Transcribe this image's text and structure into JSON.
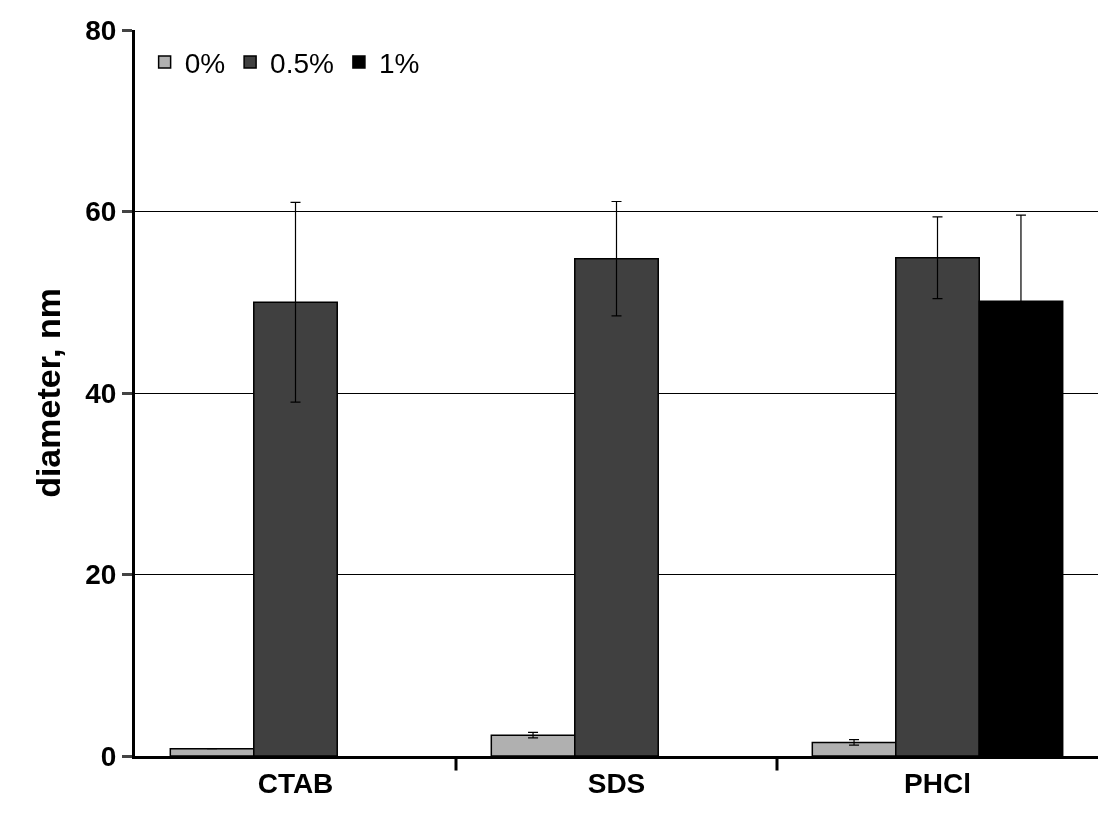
{
  "chart_data": {
    "type": "bar",
    "ylabel": "diameter, nm",
    "categories": [
      "CTAB",
      "SDS",
      "PHCl"
    ],
    "series": [
      {
        "name": "0%",
        "color": "#b0b0b0",
        "values": [
          0.8,
          2.3,
          1.5
        ],
        "errors": [
          null,
          0.3,
          0.3
        ]
      },
      {
        "name": "0.5%",
        "color": "#404040",
        "values": [
          50,
          54.8,
          54.9
        ],
        "errors": [
          11,
          6.3,
          4.5
        ]
      },
      {
        "name": "1%",
        "color": "#000000",
        "values": [
          null,
          null,
          50.1
        ],
        "errors": [
          null,
          null,
          9.5
        ]
      }
    ],
    "ylim": [
      0,
      80
    ],
    "yticks": [
      0,
      20,
      40,
      60,
      80
    ],
    "grid": "y",
    "legend": "top left"
  }
}
